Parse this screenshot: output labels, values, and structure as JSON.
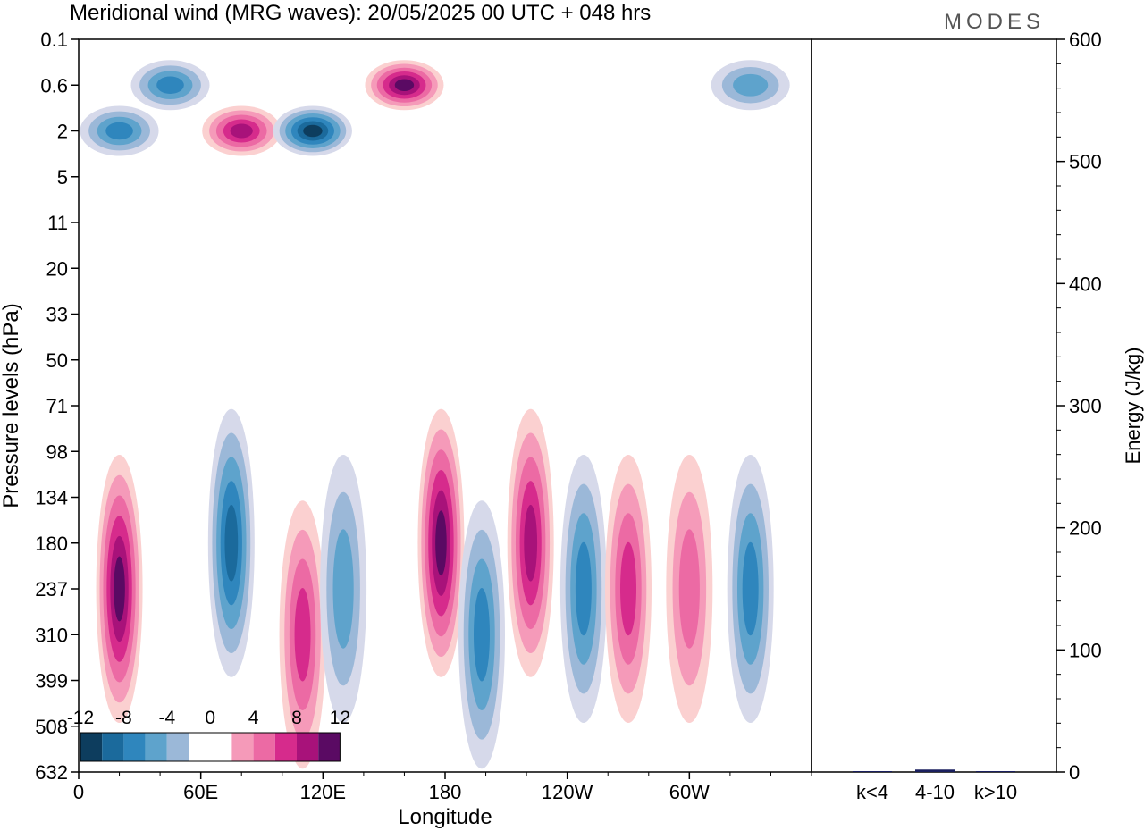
{
  "title": "Meridional wind (MRG waves):  20/05/2025  00 UTC  + 048 hrs",
  "logo": "MODES",
  "colors": {
    "neg6": "#0d3d5e",
    "neg5": "#1b6a9c",
    "neg4": "#2f86bd",
    "neg3": "#5ea3cc",
    "neg2": "#9bb8d8",
    "neg1": "#d6d9ea",
    "pos1": "#fbd0d0",
    "pos2": "#f59ab9",
    "pos3": "#ec6aa4",
    "pos4": "#d62b8c",
    "pos5": "#a8127a",
    "pos6": "#5a0a63"
  },
  "chart_data": [
    {
      "type": "heatmap",
      "title": "Meridional wind (MRG waves):  20/05/2025  00 UTC  + 048 hrs",
      "xlabel": "Longitude",
      "ylabel": "Pressure levels (hPa)",
      "x_ticks": [
        "0",
        "60E",
        "120E",
        "180",
        "120W",
        "60W"
      ],
      "y_ticks": [
        "0.1",
        "0.6",
        "2",
        "5",
        "11",
        "20",
        "33",
        "50",
        "71",
        "98",
        "134",
        "180",
        "237",
        "310",
        "399",
        "508",
        "632"
      ],
      "colorbar": {
        "levels": [
          -12,
          -10,
          -8,
          -6,
          -4,
          -2,
          0,
          2,
          4,
          6,
          8,
          10,
          12
        ],
        "labels": [
          "-12",
          "-8",
          "-4",
          "0",
          "4",
          "8",
          "12"
        ]
      },
      "features": [
        {
          "lon": 20,
          "p": "237",
          "value": 11
        },
        {
          "lon": 75,
          "p": "180",
          "value": -10
        },
        {
          "lon": 110,
          "p": "310",
          "value": 7
        },
        {
          "lon": 130,
          "p": "237",
          "value": -6
        },
        {
          "lon": 178,
          "p": "180",
          "value": 12
        },
        {
          "lon": 198,
          "p": "310",
          "value": -7
        },
        {
          "lon": 222,
          "p": "180",
          "value": 10
        },
        {
          "lon": 248,
          "p": "237",
          "value": -8
        },
        {
          "lon": 270,
          "p": "237",
          "value": 7
        },
        {
          "lon": 300,
          "p": "237",
          "value": 6
        },
        {
          "lon": 330,
          "p": "237",
          "value": -7
        },
        {
          "lon": 80,
          "p": "2",
          "value": 10
        },
        {
          "lon": 115,
          "p": "2",
          "value": -11
        },
        {
          "lon": 160,
          "p": "0.6",
          "value": 12
        },
        {
          "lon": 20,
          "p": "2",
          "value": -7
        },
        {
          "lon": 45,
          "p": "0.6",
          "value": -8
        },
        {
          "lon": 330,
          "p": "0.6",
          "value": -6
        }
      ]
    },
    {
      "type": "bar",
      "categories": [
        "k<4",
        "4-10",
        "k>10"
      ],
      "values": [
        0,
        2,
        0
      ],
      "ylabel": "Energy (J/kg)",
      "ylim": [
        0,
        600
      ],
      "y_ticks": [
        "0",
        "100",
        "200",
        "300",
        "400",
        "500",
        "600"
      ]
    }
  ]
}
